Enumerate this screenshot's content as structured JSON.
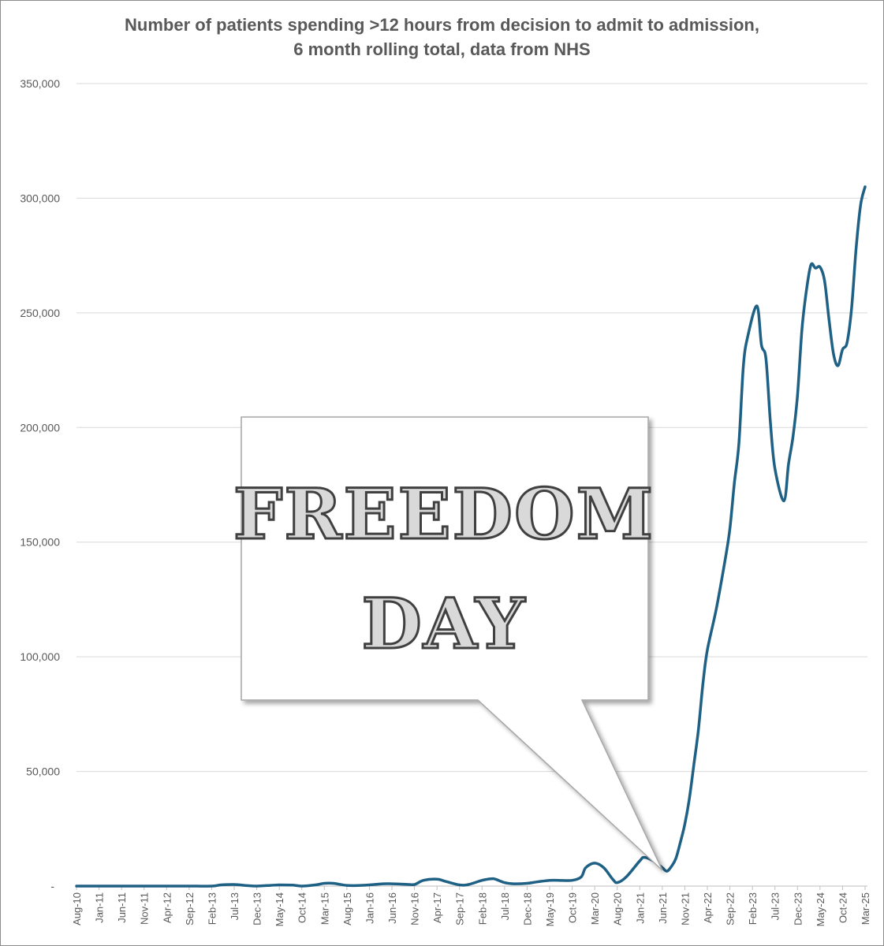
{
  "title_lines": [
    "Number of patients spending >12 hours from decision to admit to admission,",
    "6 month rolling total, data from NHS"
  ],
  "colors": {
    "line": "#1f6085",
    "grid": "#d9d9d9",
    "text": "#595959",
    "callout_fill": "#ffffff",
    "callout_border": "#a6a6a6"
  },
  "callout": {
    "line1": "FREEDOM",
    "line2": "DAY"
  },
  "chart_data": {
    "type": "line",
    "title": "Number of patients spending >12 hours from decision to admit to admission, 6 month rolling total, data from NHS",
    "ylim": [
      0,
      350000
    ],
    "yticks": [
      0,
      50000,
      100000,
      150000,
      200000,
      250000,
      300000,
      350000
    ],
    "ytick_labels": [
      "-",
      "50,000",
      "100,000",
      "150,000",
      "200,000",
      "250,000",
      "300,000",
      "350,000"
    ],
    "xtick_labels": [
      "Aug-10",
      "Jan-11",
      "Jun-11",
      "Nov-11",
      "Apr-12",
      "Sep-12",
      "Feb-13",
      "Jul-13",
      "Dec-13",
      "May-14",
      "Oct-14",
      "Mar-15",
      "Aug-15",
      "Jan-16",
      "Jun-16",
      "Nov-16",
      "Apr-17",
      "Sep-17",
      "Feb-18",
      "Jul-18",
      "Dec-18",
      "May-19",
      "Oct-19",
      "Mar-20",
      "Aug-20",
      "Jan-21",
      "Jun-21",
      "Nov-21",
      "Apr-22",
      "Sep-22",
      "Feb-23",
      "Jul-23",
      "Dec-23",
      "May-24",
      "Oct-24",
      "Mar-25"
    ],
    "grid": true,
    "legend": "none",
    "series": [
      {
        "points": [
          [
            "Aug-10",
            0
          ],
          [
            "Jan-11",
            0
          ],
          [
            "Jun-11",
            0
          ],
          [
            "Nov-11",
            0
          ],
          [
            "Apr-12",
            0
          ],
          [
            "Sep-12",
            0
          ],
          [
            "Feb-13",
            0
          ],
          [
            "Apr-13",
            500
          ],
          [
            "Jul-13",
            700
          ],
          [
            "Oct-13",
            200
          ],
          [
            "Dec-13",
            0
          ],
          [
            "Mar-14",
            300
          ],
          [
            "May-14",
            500
          ],
          [
            "Aug-14",
            400
          ],
          [
            "Oct-14",
            0
          ],
          [
            "Jan-15",
            500
          ],
          [
            "Mar-15",
            1200
          ],
          [
            "May-15",
            1200
          ],
          [
            "Aug-15",
            300
          ],
          [
            "Nov-15",
            300
          ],
          [
            "Jan-16",
            500
          ],
          [
            "Apr-16",
            1000
          ],
          [
            "Jun-16",
            1000
          ],
          [
            "Sep-16",
            800
          ],
          [
            "Nov-16",
            700
          ],
          [
            "Jan-17",
            2500
          ],
          [
            "Apr-17",
            3000
          ],
          [
            "Jun-17",
            2000
          ],
          [
            "Sep-17",
            500
          ],
          [
            "Nov-17",
            700
          ],
          [
            "Feb-18",
            2500
          ],
          [
            "Apr-18",
            3200
          ],
          [
            "May-18",
            3000
          ],
          [
            "Jul-18",
            1500
          ],
          [
            "Sep-18",
            1000
          ],
          [
            "Dec-18",
            1200
          ],
          [
            "Feb-19",
            1800
          ],
          [
            "May-19",
            2500
          ],
          [
            "Jul-19",
            2500
          ],
          [
            "Oct-19",
            2500
          ],
          [
            "Dec-19",
            4000
          ],
          [
            "Jan-20",
            8000
          ],
          [
            "Mar-20",
            10000
          ],
          [
            "May-20",
            8000
          ],
          [
            "Jul-20",
            3000
          ],
          [
            "Aug-20",
            1500
          ],
          [
            "Oct-20",
            4000
          ],
          [
            "Jan-21",
            11000
          ],
          [
            "Feb-21",
            12500
          ],
          [
            "Apr-21",
            11000
          ],
          [
            "Jun-21",
            8000
          ],
          [
            "Jul-21",
            6500
          ],
          [
            "Aug-21",
            8500
          ],
          [
            "Sep-21",
            12000
          ],
          [
            "Oct-21",
            19000
          ],
          [
            "Nov-21",
            27000
          ],
          [
            "Dec-21",
            38000
          ],
          [
            "Jan-22",
            53000
          ],
          [
            "Feb-22",
            68000
          ],
          [
            "Mar-22",
            88000
          ],
          [
            "Apr-22",
            103000
          ],
          [
            "Jun-22",
            121000
          ],
          [
            "Aug-22",
            143000
          ],
          [
            "Sep-22",
            156000
          ],
          [
            "Oct-22",
            176000
          ],
          [
            "Nov-22",
            193000
          ],
          [
            "Dec-22",
            227000
          ],
          [
            "Jan-23",
            240000
          ],
          [
            "Mar-23",
            253000
          ],
          [
            "Apr-23",
            236000
          ],
          [
            "May-23",
            230000
          ],
          [
            "Jun-23",
            202000
          ],
          [
            "Jul-23",
            182000
          ],
          [
            "Sep-23",
            168000
          ],
          [
            "Oct-23",
            184000
          ],
          [
            "Nov-23",
            196000
          ],
          [
            "Dec-23",
            214000
          ],
          [
            "Jan-24",
            243000
          ],
          [
            "Feb-24",
            260000
          ],
          [
            "Mar-24",
            271000
          ],
          [
            "Apr-24",
            269500
          ],
          [
            "May-24",
            270000
          ],
          [
            "Jun-24",
            264000
          ],
          [
            "Jul-24",
            247000
          ],
          [
            "Aug-24",
            232000
          ],
          [
            "Sep-24",
            227000
          ],
          [
            "Oct-24",
            234000
          ],
          [
            "Nov-24",
            237000
          ],
          [
            "Dec-24",
            252000
          ],
          [
            "Jan-25",
            278000
          ],
          [
            "Feb-25",
            297000
          ],
          [
            "Mar-25",
            305000
          ]
        ]
      }
    ]
  }
}
